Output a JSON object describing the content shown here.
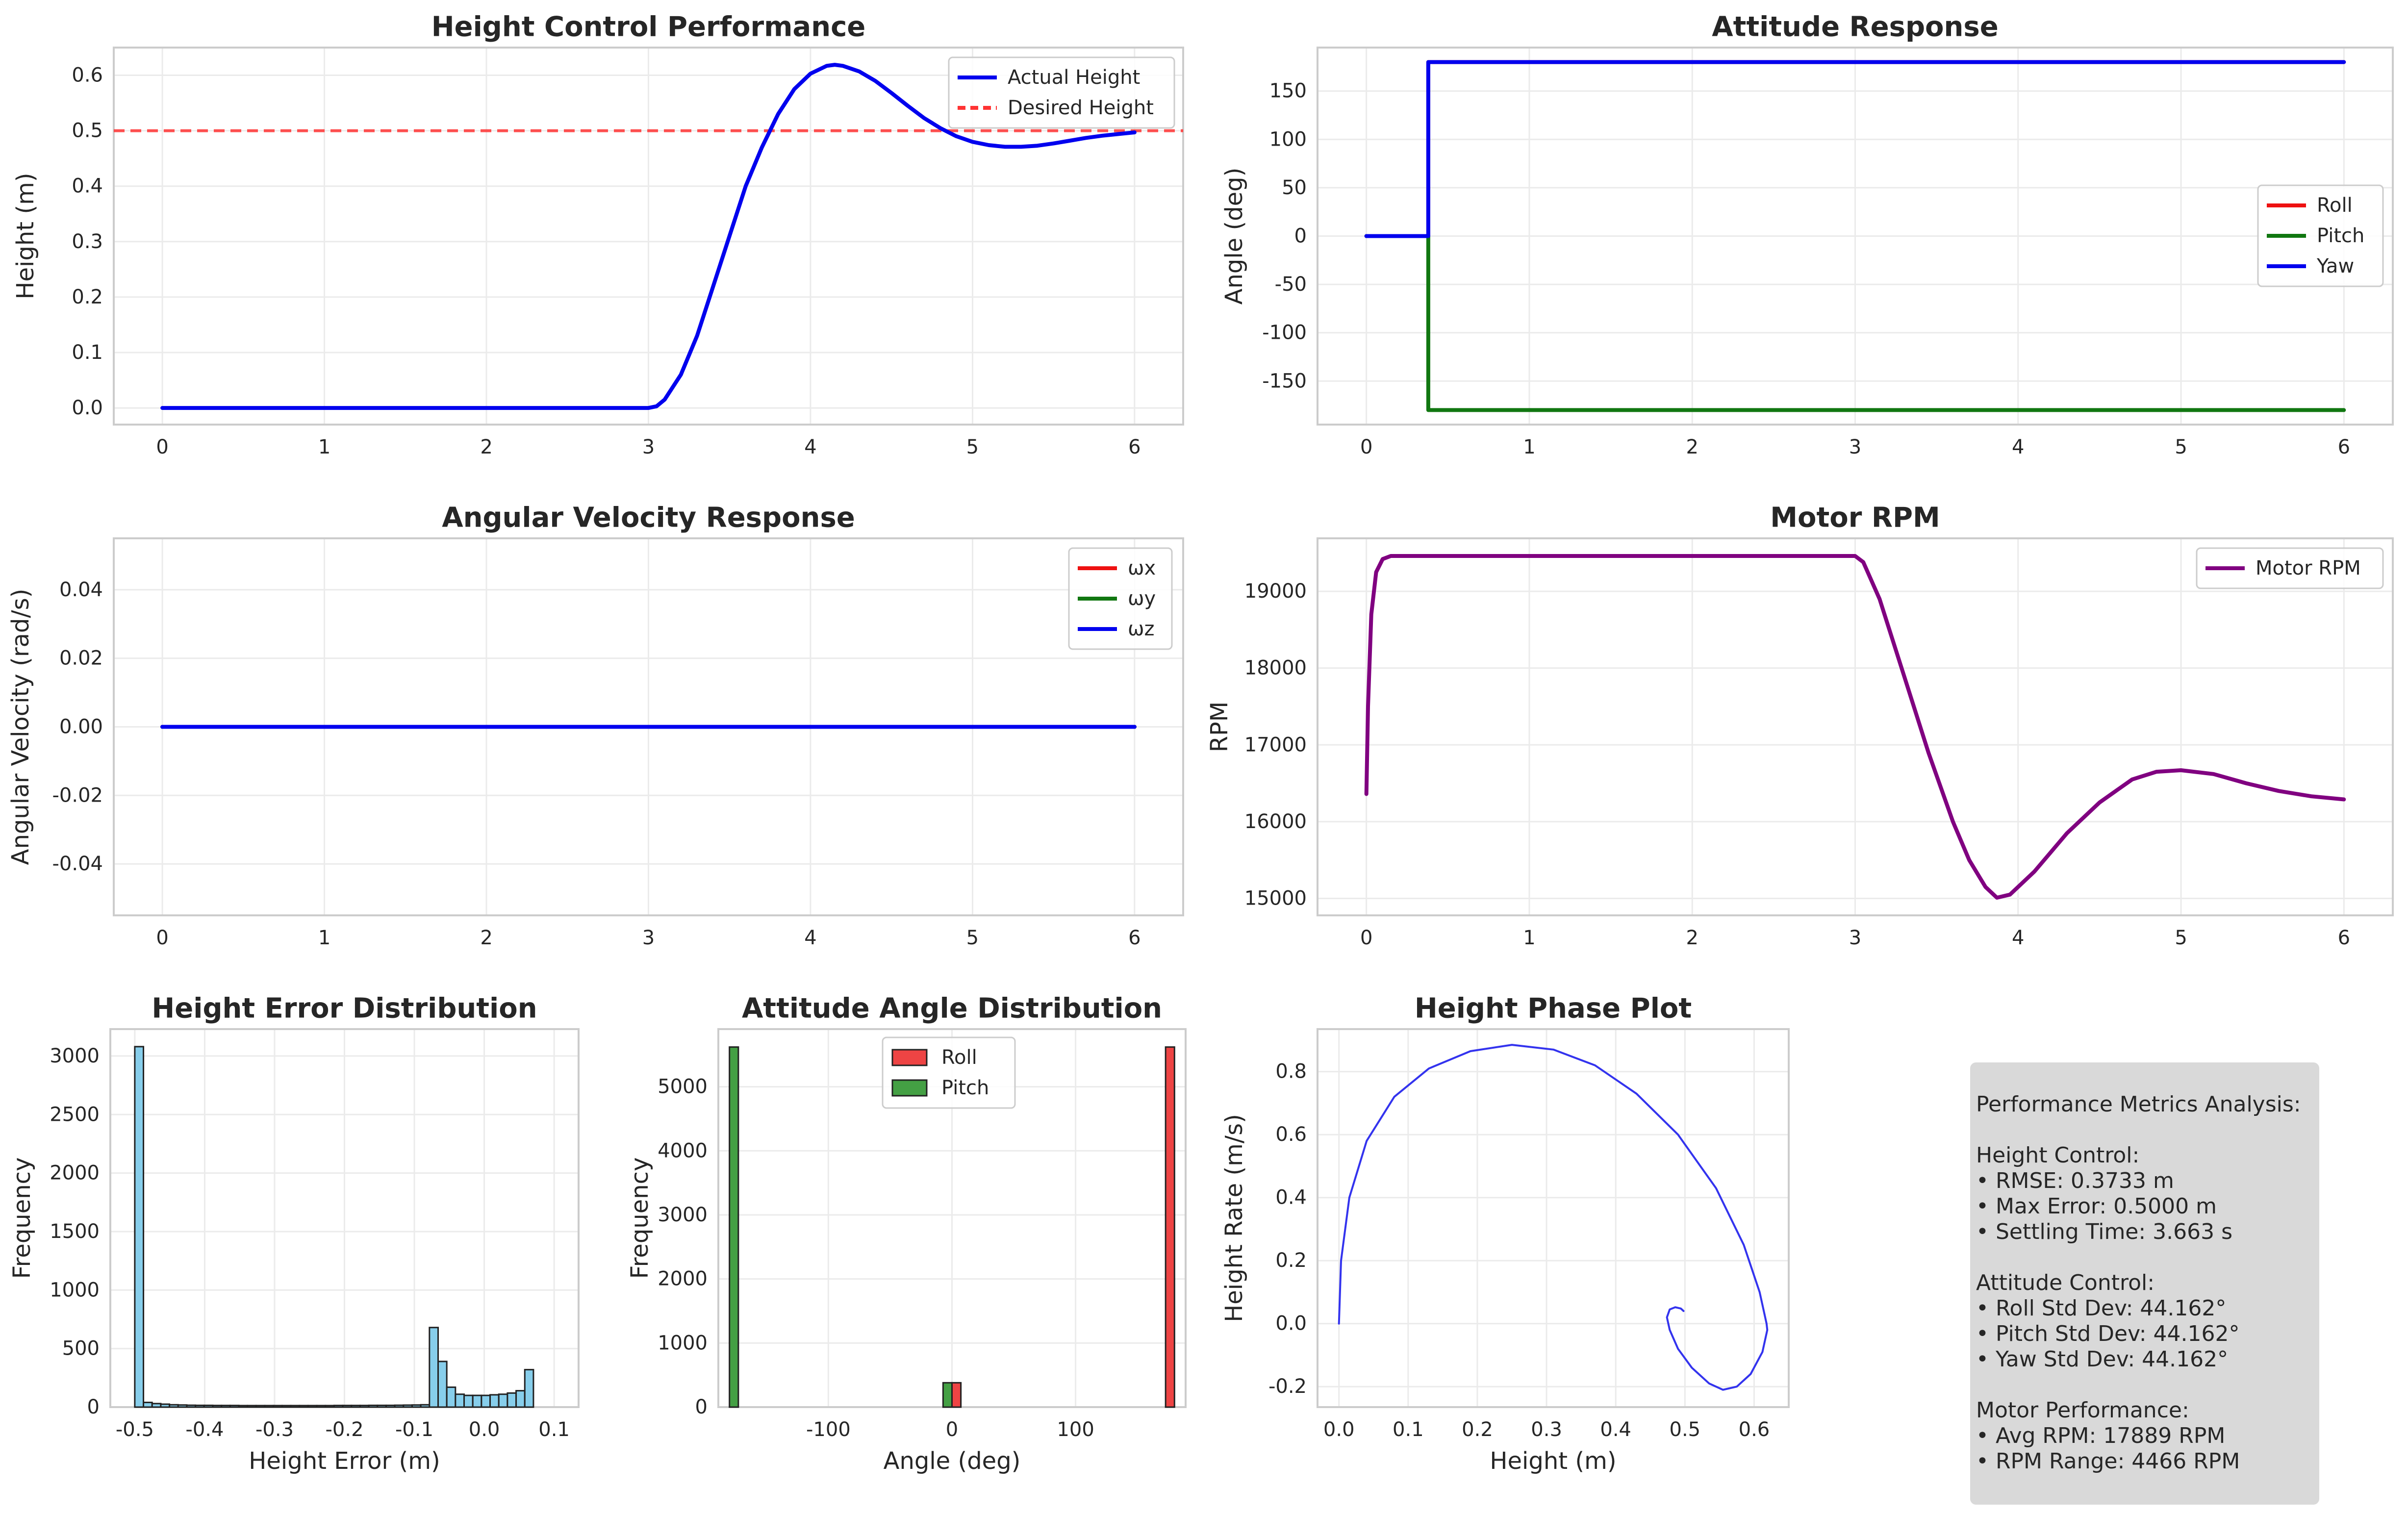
{
  "colors": {
    "blue": "#0000ee",
    "red": "#ee1111",
    "green": "#117711",
    "purple": "#800080",
    "desired": "#ff3333",
    "hist_blue": "#87ceeb",
    "hist_red": "#ee4444",
    "hist_green": "#44a044",
    "phase": "#3333ee",
    "grid": "#ebebeb",
    "spine": "#cccccc",
    "text": "#262626",
    "metrics_bg": "#d9d9d9"
  },
  "chart_data": [
    {
      "id": "height",
      "type": "line",
      "title": "Height Control Performance",
      "xlabel": "",
      "ylabel": "Height (m)",
      "xlim": [
        -0.3,
        6.3
      ],
      "ylim": [
        -0.03,
        0.65
      ],
      "xticks": [
        0,
        1,
        2,
        3,
        4,
        5,
        6
      ],
      "yticks": [
        0.0,
        0.1,
        0.2,
        0.3,
        0.4,
        0.5,
        0.6
      ],
      "ytick_labels": [
        "0.0",
        "0.1",
        "0.2",
        "0.3",
        "0.4",
        "0.5",
        "0.6"
      ],
      "legend": "top-right",
      "series": [
        {
          "name": "Actual Height",
          "color": "#0000ee",
          "style": "solid",
          "points": [
            [
              0,
              0
            ],
            [
              3.0,
              0
            ],
            [
              3.05,
              0.003
            ],
            [
              3.1,
              0.015
            ],
            [
              3.2,
              0.06
            ],
            [
              3.3,
              0.13
            ],
            [
              3.4,
              0.22
            ],
            [
              3.5,
              0.31
            ],
            [
              3.6,
              0.4
            ],
            [
              3.7,
              0.47
            ],
            [
              3.8,
              0.53
            ],
            [
              3.9,
              0.575
            ],
            [
              4.0,
              0.603
            ],
            [
              4.1,
              0.617
            ],
            [
              4.15,
              0.619
            ],
            [
              4.2,
              0.617
            ],
            [
              4.3,
              0.607
            ],
            [
              4.4,
              0.59
            ],
            [
              4.5,
              0.568
            ],
            [
              4.6,
              0.545
            ],
            [
              4.7,
              0.523
            ],
            [
              4.8,
              0.505
            ],
            [
              4.9,
              0.49
            ],
            [
              5.0,
              0.48
            ],
            [
              5.1,
              0.474
            ],
            [
              5.2,
              0.471
            ],
            [
              5.3,
              0.471
            ],
            [
              5.4,
              0.473
            ],
            [
              5.5,
              0.477
            ],
            [
              5.6,
              0.482
            ],
            [
              5.7,
              0.487
            ],
            [
              5.8,
              0.491
            ],
            [
              5.9,
              0.494
            ],
            [
              6.0,
              0.497
            ]
          ]
        },
        {
          "name": "Desired Height",
          "color": "#ff3333",
          "style": "dashed",
          "hline": 0.5
        }
      ]
    },
    {
      "id": "attitude",
      "type": "line",
      "title": "Attitude Response",
      "xlabel": "",
      "ylabel": "Angle (deg)",
      "xlim": [
        -0.3,
        6.3
      ],
      "ylim": [
        -195,
        195
      ],
      "xticks": [
        0,
        1,
        2,
        3,
        4,
        5,
        6
      ],
      "yticks": [
        -150,
        -100,
        -50,
        0,
        50,
        100,
        150
      ],
      "ytick_labels": [
        "-150",
        "-100",
        "-50",
        "0",
        "50",
        "100",
        "150"
      ],
      "legend": "center-right",
      "series": [
        {
          "name": "Roll",
          "color": "#ee1111",
          "points": [
            [
              0,
              0
            ],
            [
              0.38,
              0
            ],
            [
              0.38,
              180
            ],
            [
              6,
              180
            ]
          ]
        },
        {
          "name": "Pitch",
          "color": "#117711",
          "points": [
            [
              0,
              0
            ],
            [
              0.38,
              0
            ],
            [
              0.38,
              -180
            ],
            [
              6,
              -180
            ]
          ]
        },
        {
          "name": "Yaw",
          "color": "#0000ee",
          "points": [
            [
              0,
              0
            ],
            [
              0.38,
              0
            ],
            [
              0.38,
              180
            ],
            [
              6,
              180
            ]
          ]
        }
      ]
    },
    {
      "id": "angvel",
      "type": "line",
      "title": "Angular Velocity Response",
      "xlabel": "",
      "ylabel": "Angular Velocity (rad/s)",
      "xlim": [
        -0.3,
        6.3
      ],
      "ylim": [
        -0.055,
        0.055
      ],
      "xticks": [
        0,
        1,
        2,
        3,
        4,
        5,
        6
      ],
      "yticks": [
        -0.04,
        -0.02,
        0.0,
        0.02,
        0.04
      ],
      "ytick_labels": [
        "-0.04",
        "-0.02",
        "0.00",
        "0.02",
        "0.04"
      ],
      "legend": "top-right",
      "series": [
        {
          "name": "ωx",
          "color": "#ee1111",
          "points": [
            [
              0,
              0
            ],
            [
              6,
              0
            ]
          ]
        },
        {
          "name": "ωy",
          "color": "#117711",
          "points": [
            [
              0,
              0
            ],
            [
              6,
              0
            ]
          ]
        },
        {
          "name": "ωz",
          "color": "#0000ee",
          "points": [
            [
              0,
              0
            ],
            [
              6,
              0
            ]
          ]
        }
      ]
    },
    {
      "id": "rpm",
      "type": "line",
      "title": "Motor RPM",
      "xlabel": "",
      "ylabel": "RPM",
      "xlim": [
        -0.3,
        6.3
      ],
      "ylim": [
        14780,
        19690
      ],
      "xticks": [
        0,
        1,
        2,
        3,
        4,
        5,
        6
      ],
      "yticks": [
        15000,
        16000,
        17000,
        18000,
        19000
      ],
      "ytick_labels": [
        "15000",
        "16000",
        "17000",
        "18000",
        "19000"
      ],
      "legend": "top-right",
      "series": [
        {
          "name": "Motor RPM",
          "color": "#800080",
          "points": [
            [
              0,
              16360
            ],
            [
              0.01,
              17500
            ],
            [
              0.03,
              18700
            ],
            [
              0.06,
              19250
            ],
            [
              0.1,
              19420
            ],
            [
              0.15,
              19460
            ],
            [
              3.0,
              19460
            ],
            [
              3.05,
              19380
            ],
            [
              3.15,
              18900
            ],
            [
              3.3,
              17900
            ],
            [
              3.45,
              16900
            ],
            [
              3.6,
              16000
            ],
            [
              3.7,
              15500
            ],
            [
              3.8,
              15150
            ],
            [
              3.87,
              15010
            ],
            [
              3.95,
              15050
            ],
            [
              4.1,
              15350
            ],
            [
              4.3,
              15850
            ],
            [
              4.5,
              16250
            ],
            [
              4.7,
              16550
            ],
            [
              4.85,
              16650
            ],
            [
              5.0,
              16670
            ],
            [
              5.2,
              16620
            ],
            [
              5.4,
              16500
            ],
            [
              5.6,
              16400
            ],
            [
              5.8,
              16330
            ],
            [
              6.0,
              16290
            ]
          ]
        }
      ]
    },
    {
      "id": "herr",
      "type": "bar",
      "title": "Height Error Distribution",
      "xlabel": "Height Error (m)",
      "ylabel": "Frequency",
      "xlim": [
        -0.535,
        0.135
      ],
      "ylim": [
        0,
        3230
      ],
      "xticks": [
        -0.5,
        -0.4,
        -0.3,
        -0.2,
        -0.1,
        0.0,
        0.1
      ],
      "xtick_labels": [
        "-0.5",
        "-0.4",
        "-0.3",
        "-0.2",
        "-0.1",
        "0.0",
        "0.1"
      ],
      "yticks": [
        0,
        500,
        1000,
        1500,
        2000,
        2500,
        3000
      ],
      "ytick_labels": [
        "0",
        "500",
        "1000",
        "1500",
        "2000",
        "2500",
        "3000"
      ],
      "bin_start": -0.5,
      "bin_width": 0.0124,
      "values": [
        3080,
        40,
        30,
        25,
        20,
        18,
        16,
        15,
        15,
        14,
        14,
        14,
        13,
        13,
        13,
        13,
        13,
        13,
        13,
        13,
        13,
        13,
        13,
        14,
        14,
        14,
        14,
        15,
        15,
        15,
        16,
        17,
        18,
        20,
        680,
        390,
        170,
        110,
        100,
        100,
        100,
        105,
        110,
        120,
        140,
        320
      ]
    },
    {
      "id": "attdist",
      "type": "bar",
      "title": "Attitude Angle Distribution",
      "xlabel": "Angle (deg)",
      "ylabel": "Frequency",
      "xlim": [
        -189,
        189
      ],
      "ylim": [
        0,
        5900
      ],
      "xticks": [
        -100,
        0,
        100
      ],
      "xtick_labels": [
        "-100",
        "0",
        "100"
      ],
      "yticks": [
        0,
        1000,
        2000,
        3000,
        4000,
        5000
      ],
      "ytick_labels": [
        "0",
        "1000",
        "2000",
        "3000",
        "4000",
        "5000"
      ],
      "legend": "top-center",
      "series": [
        {
          "name": "Roll",
          "color": "#ee4444",
          "bars": [
            {
              "x0": 0,
              "x1": 7.2,
              "value": 380
            },
            {
              "x0": 172.8,
              "x1": 180,
              "value": 5620
            }
          ]
        },
        {
          "name": "Pitch",
          "color": "#44a044",
          "bars": [
            {
              "x0": -180,
              "x1": -172.8,
              "value": 5620
            },
            {
              "x0": -7.2,
              "x1": 0,
              "value": 380
            }
          ]
        }
      ]
    },
    {
      "id": "phase",
      "type": "line",
      "title": "Height Phase Plot",
      "xlabel": "Height (m)",
      "ylabel": "Height Rate (m/s)",
      "xlim": [
        -0.031,
        0.65
      ],
      "ylim": [
        -0.265,
        0.935
      ],
      "xticks": [
        0.0,
        0.1,
        0.2,
        0.3,
        0.4,
        0.5,
        0.6
      ],
      "xtick_labels": [
        "0.0",
        "0.1",
        "0.2",
        "0.3",
        "0.4",
        "0.5",
        "0.6"
      ],
      "yticks": [
        -0.2,
        0.0,
        0.2,
        0.4,
        0.6,
        0.8
      ],
      "ytick_labels": [
        "-0.2",
        "0.0",
        "0.2",
        "0.4",
        "0.6",
        "0.8"
      ],
      "series": [
        {
          "name": "",
          "color": "#3333ee",
          "points": [
            [
              0,
              0
            ],
            [
              0.003,
              0.2
            ],
            [
              0.015,
              0.4
            ],
            [
              0.04,
              0.58
            ],
            [
              0.08,
              0.72
            ],
            [
              0.13,
              0.81
            ],
            [
              0.19,
              0.865
            ],
            [
              0.25,
              0.885
            ],
            [
              0.31,
              0.87
            ],
            [
              0.37,
              0.82
            ],
            [
              0.43,
              0.73
            ],
            [
              0.49,
              0.6
            ],
            [
              0.545,
              0.43
            ],
            [
              0.585,
              0.25
            ],
            [
              0.608,
              0.1
            ],
            [
              0.618,
              0
            ],
            [
              0.619,
              -0.02
            ],
            [
              0.612,
              -0.09
            ],
            [
              0.595,
              -0.16
            ],
            [
              0.575,
              -0.2
            ],
            [
              0.555,
              -0.21
            ],
            [
              0.535,
              -0.19
            ],
            [
              0.51,
              -0.14
            ],
            [
              0.49,
              -0.08
            ],
            [
              0.478,
              -0.02
            ],
            [
              0.474,
              0.02
            ],
            [
              0.478,
              0.045
            ],
            [
              0.486,
              0.052
            ],
            [
              0.494,
              0.048
            ],
            [
              0.498,
              0.04
            ]
          ]
        }
      ]
    }
  ],
  "metrics": {
    "lines": [
      "Performance Metrics Analysis:",
      "",
      "Height Control:",
      "• RMSE: 0.3733 m",
      "• Max Error: 0.5000 m",
      "• Settling Time: 3.663 s",
      "",
      "Attitude Control:",
      "• Roll Std Dev: 44.162°",
      "• Pitch Std Dev: 44.162°",
      "• Yaw Std Dev: 44.162°",
      "",
      "Motor Performance:",
      "• Avg RPM: 17889 RPM",
      "• RPM Range: 4466 RPM"
    ]
  }
}
